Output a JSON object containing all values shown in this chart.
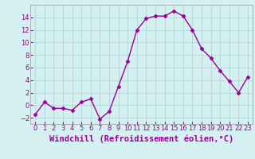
{
  "x": [
    0,
    1,
    2,
    3,
    4,
    5,
    6,
    7,
    8,
    9,
    10,
    11,
    12,
    13,
    14,
    15,
    16,
    17,
    18,
    19,
    20,
    21,
    22,
    23
  ],
  "y": [
    -1.5,
    0.5,
    -0.5,
    -0.5,
    -0.8,
    0.5,
    1.0,
    -2.2,
    -1.0,
    3.0,
    7.0,
    12.0,
    13.8,
    14.2,
    14.2,
    15.0,
    14.2,
    12.0,
    9.0,
    7.5,
    5.5,
    3.8,
    2.0,
    4.5
  ],
  "line_color": "#990099",
  "marker": "D",
  "marker_size": 2.5,
  "bg_color": "#d4f0f0",
  "grid_color": "#b0d8d8",
  "ylim": [
    -3,
    16
  ],
  "yticks": [
    -2,
    0,
    2,
    4,
    6,
    8,
    10,
    12,
    14
  ],
  "xticks": [
    0,
    1,
    2,
    3,
    4,
    5,
    6,
    7,
    8,
    9,
    10,
    11,
    12,
    13,
    14,
    15,
    16,
    17,
    18,
    19,
    20,
    21,
    22,
    23
  ],
  "xlabel": "Windchill (Refroidissement éolien,°C)",
  "tick_color": "#990099",
  "tick_fontsize": 6,
  "xlabel_fontsize": 7.5,
  "spine_color": "#999999"
}
